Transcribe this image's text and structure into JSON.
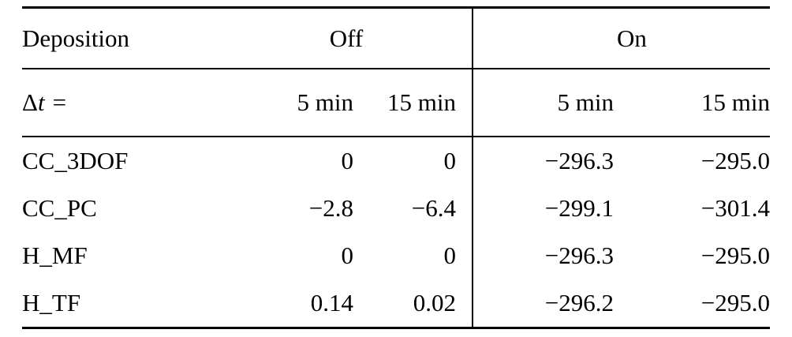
{
  "table": {
    "header": {
      "col1": "Deposition",
      "group_off": "Off",
      "group_on": "On"
    },
    "subheader": {
      "delta": "Δ",
      "var": "t",
      "eq": "=",
      "off_5": "5 min",
      "off_15": "15 min",
      "on_5": "5 min",
      "on_15": "15 min"
    },
    "rows": [
      {
        "label": "CC_3DOF",
        "off_5": "0",
        "off_15": "0",
        "on_5": "−296.3",
        "on_15": "−295.0"
      },
      {
        "label": "CC_PC",
        "off_5": "−2.8",
        "off_15": "−6.4",
        "on_5": "−299.1",
        "on_15": "−301.4"
      },
      {
        "label": "H_MF",
        "off_5": "0",
        "off_15": "0",
        "on_5": "−296.3",
        "on_15": "−295.0"
      },
      {
        "label": "H_TF",
        "off_5": "0.14",
        "off_15": "0.02",
        "on_5": "−296.2",
        "on_15": "−295.0"
      }
    ]
  }
}
